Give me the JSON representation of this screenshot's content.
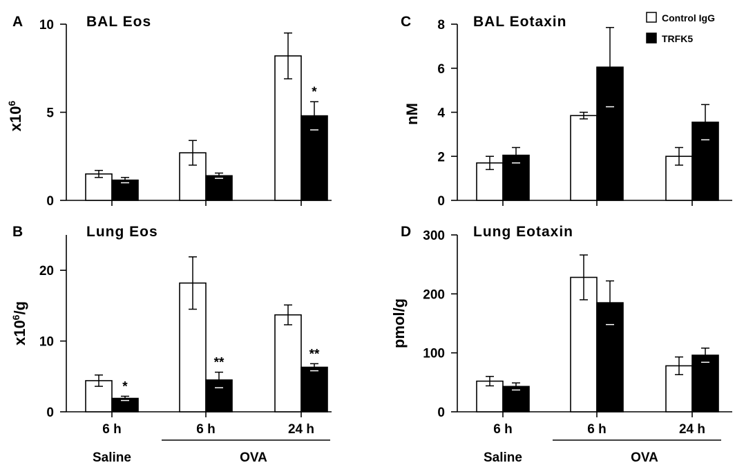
{
  "legend": [
    {
      "label": "Control IgG",
      "color": "#ffffff"
    },
    {
      "label": "TRFK5",
      "color": "#000000"
    }
  ],
  "x_groups": {
    "tick_labels": [
      "6 h",
      "6 h",
      "24 h"
    ],
    "group_labels": [
      {
        "label": "Saline",
        "spans": [
          0
        ]
      },
      {
        "label": "OVA",
        "spans": [
          1,
          2
        ]
      }
    ]
  },
  "chart_data": [
    {
      "type": "bar",
      "panel": "A",
      "title": "BAL Eos",
      "ylabel": "x10^6",
      "ylabel_base": "x10",
      "ylabel_sup": "6",
      "ylabel_suffix": "",
      "ylim": [
        0,
        10
      ],
      "yticks": [
        0,
        5,
        10
      ],
      "categories": [
        "6 h",
        "6 h",
        "24 h"
      ],
      "series": [
        {
          "name": "Control IgG",
          "values": [
            1.5,
            2.7,
            8.2
          ],
          "errors": [
            0.2,
            0.7,
            1.3
          ]
        },
        {
          "name": "TRFK5",
          "values": [
            1.15,
            1.4,
            4.8
          ],
          "errors": [
            0.15,
            0.15,
            0.8
          ]
        }
      ],
      "annotations": [
        "",
        "",
        "*"
      ]
    },
    {
      "type": "bar",
      "panel": "B",
      "title": "Lung Eos",
      "ylabel": "x10^6/g",
      "ylabel_base": "x10",
      "ylabel_sup": "6",
      "ylabel_suffix": "/g",
      "ylim": [
        0,
        25
      ],
      "yticks": [
        0,
        10,
        20
      ],
      "categories": [
        "6 h",
        "6 h",
        "24 h"
      ],
      "series": [
        {
          "name": "Control IgG",
          "values": [
            4.4,
            18.2,
            13.7
          ],
          "errors": [
            0.8,
            3.7,
            1.4
          ]
        },
        {
          "name": "TRFK5",
          "values": [
            1.9,
            4.5,
            6.3
          ],
          "errors": [
            0.3,
            1.1,
            0.5
          ]
        }
      ],
      "annotations": [
        "*",
        "**",
        "**"
      ]
    },
    {
      "type": "bar",
      "panel": "C",
      "title": "BAL Eotaxin",
      "ylabel": "nM",
      "ylabel_base": "nM",
      "ylabel_sup": "",
      "ylabel_suffix": "",
      "ylim": [
        0,
        8
      ],
      "yticks": [
        0,
        2,
        4,
        6,
        8
      ],
      "categories": [
        "6 h",
        "6 h",
        "24 h"
      ],
      "series": [
        {
          "name": "Control IgG",
          "values": [
            1.7,
            3.85,
            2.0
          ],
          "errors": [
            0.3,
            0.15,
            0.4
          ]
        },
        {
          "name": "TRFK5",
          "values": [
            2.05,
            6.05,
            3.55
          ],
          "errors": [
            0.35,
            1.8,
            0.8
          ]
        }
      ],
      "annotations": [
        "",
        "",
        ""
      ]
    },
    {
      "type": "bar",
      "panel": "D",
      "title": "Lung Eotaxin",
      "ylabel": "pmol/g",
      "ylabel_base": "pmol/g",
      "ylabel_sup": "",
      "ylabel_suffix": "",
      "ylim": [
        0,
        300
      ],
      "yticks": [
        0,
        100,
        200,
        300
      ],
      "categories": [
        "6 h",
        "6 h",
        "24 h"
      ],
      "series": [
        {
          "name": "Control IgG",
          "values": [
            52,
            228,
            78
          ],
          "errors": [
            8,
            38,
            15
          ]
        },
        {
          "name": "TRFK5",
          "values": [
            43,
            185,
            96
          ],
          "errors": [
            6,
            37,
            12
          ]
        }
      ],
      "annotations": [
        "",
        "",
        ""
      ]
    }
  ]
}
